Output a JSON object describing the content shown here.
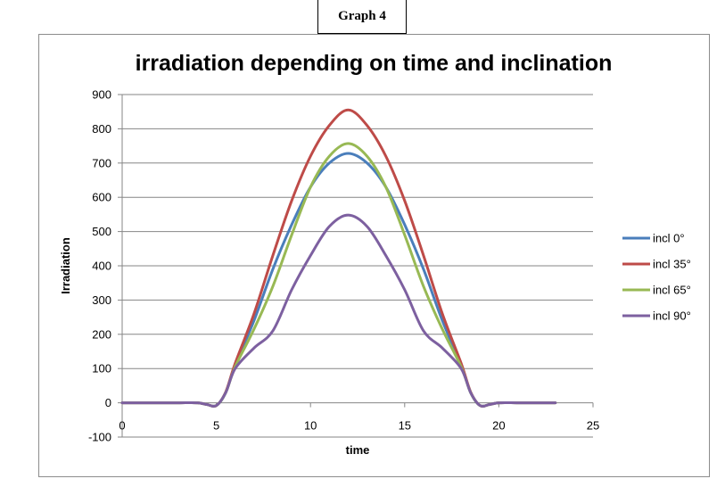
{
  "graph_label": "Graph 4",
  "chart_data": {
    "type": "line",
    "title": "irradiation depending on time and inclination",
    "xlabel": "time",
    "ylabel": "Irradiation",
    "xlim": [
      0,
      25
    ],
    "ylim": [
      -100,
      900
    ],
    "x_ticks": [
      0,
      5,
      10,
      15,
      20,
      25
    ],
    "y_ticks": [
      -100,
      0,
      100,
      200,
      300,
      400,
      500,
      600,
      700,
      800,
      900
    ],
    "grid": "horizontal",
    "legend_position": "right",
    "series": [
      {
        "name": "incl 0°",
        "color": "#4a7ebb",
        "x": [
          0,
          1,
          2,
          3,
          4,
          4.5,
          5,
          5.5,
          6,
          7,
          8,
          9,
          10,
          11,
          12,
          13,
          14,
          15,
          16,
          17,
          18,
          18.5,
          19,
          19.5,
          20,
          21,
          22,
          23
        ],
        "y": [
          0,
          0,
          0,
          0,
          0,
          -5,
          -8,
          30,
          110,
          240,
          390,
          520,
          630,
          700,
          728,
          700,
          630,
          520,
          390,
          240,
          110,
          30,
          -8,
          -5,
          0,
          0,
          0,
          0
        ]
      },
      {
        "name": "incl 35°",
        "color": "#be4b48",
        "x": [
          0,
          1,
          2,
          3,
          4,
          4.5,
          5,
          5.5,
          6,
          7,
          8,
          9,
          10,
          11,
          12,
          13,
          14,
          15,
          16,
          17,
          18,
          18.5,
          19,
          19.5,
          20,
          21,
          22,
          23
        ],
        "y": [
          0,
          0,
          0,
          0,
          0,
          -5,
          -8,
          32,
          115,
          260,
          430,
          590,
          720,
          810,
          855,
          810,
          720,
          590,
          430,
          260,
          115,
          32,
          -8,
          -5,
          0,
          0,
          0,
          0
        ]
      },
      {
        "name": "incl 65°",
        "color": "#98b954",
        "x": [
          0,
          1,
          2,
          3,
          4,
          4.5,
          5,
          5.5,
          6,
          7,
          8,
          9,
          10,
          11,
          12,
          13,
          14,
          15,
          16,
          17,
          18,
          18.5,
          19,
          19.5,
          20,
          21,
          22,
          23
        ],
        "y": [
          0,
          0,
          0,
          0,
          0,
          -5,
          -8,
          30,
          105,
          215,
          340,
          490,
          630,
          720,
          757,
          720,
          630,
          490,
          340,
          215,
          105,
          30,
          -8,
          -5,
          0,
          0,
          0,
          0
        ]
      },
      {
        "name": "incl 90°",
        "color": "#7d60a0",
        "x": [
          0,
          1,
          2,
          3,
          4,
          4.5,
          5,
          5.5,
          6,
          7,
          8,
          9,
          10,
          11,
          12,
          13,
          14,
          15,
          16,
          17,
          18,
          18.5,
          19,
          19.5,
          20,
          21,
          22,
          23
        ],
        "y": [
          0,
          0,
          0,
          0,
          0,
          -5,
          -8,
          30,
          100,
          160,
          210,
          330,
          430,
          515,
          548,
          515,
          430,
          330,
          210,
          160,
          100,
          30,
          -8,
          -5,
          0,
          0,
          0,
          0
        ]
      }
    ]
  }
}
